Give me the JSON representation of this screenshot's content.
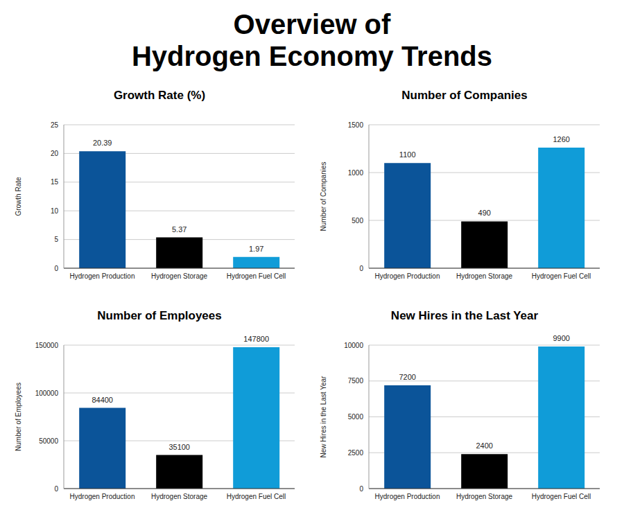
{
  "title": "Overview of\nHydrogen Economy Trends",
  "chart_data": [
    {
      "type": "bar",
      "title": "Growth Rate (%)",
      "ylabel": "Growth Rate",
      "categories": [
        "Hydrogen Production",
        "Hydrogen Storage",
        "Hydrogen Fuel Cell"
      ],
      "values": [
        20.39,
        5.37,
        1.97
      ],
      "colors": [
        "#0b5499",
        "#000000",
        "#109cd8"
      ],
      "ylim": [
        0,
        25
      ],
      "yticks": [
        0,
        5,
        10,
        15,
        20,
        25
      ],
      "grid": true,
      "data_labels": true
    },
    {
      "type": "bar",
      "title": "Number of Companies",
      "ylabel": "Number of Companies",
      "categories": [
        "Hydrogen Production",
        "Hydrogen Storage",
        "Hydrogen Fuel Cell"
      ],
      "values": [
        1100,
        490,
        1260
      ],
      "colors": [
        "#0b5499",
        "#000000",
        "#109cd8"
      ],
      "ylim": [
        0,
        1500
      ],
      "yticks": [
        0,
        500,
        1000,
        1500
      ],
      "grid": true,
      "data_labels": true
    },
    {
      "type": "bar",
      "title": "Number of Employees",
      "ylabel": "Number of Employees",
      "categories": [
        "Hydrogen Production",
        "Hydrogen Storage",
        "Hydrogen Fuel Cell"
      ],
      "values": [
        84400,
        35100,
        147800
      ],
      "colors": [
        "#0b5499",
        "#000000",
        "#109cd8"
      ],
      "ylim": [
        0,
        150000
      ],
      "yticks": [
        0,
        50000,
        100000,
        150000
      ],
      "grid": true,
      "data_labels": true
    },
    {
      "type": "bar",
      "title": "New Hires in the Last Year",
      "ylabel": "New Hires in the Last Year",
      "categories": [
        "Hydrogen Production",
        "Hydrogen Storage",
        "Hydrogen Fuel Cell"
      ],
      "values": [
        7200,
        2400,
        9900
      ],
      "colors": [
        "#0b5499",
        "#000000",
        "#109cd8"
      ],
      "ylim": [
        0,
        10000
      ],
      "yticks": [
        0,
        2500,
        5000,
        7500,
        10000
      ],
      "grid": true,
      "data_labels": true
    }
  ]
}
